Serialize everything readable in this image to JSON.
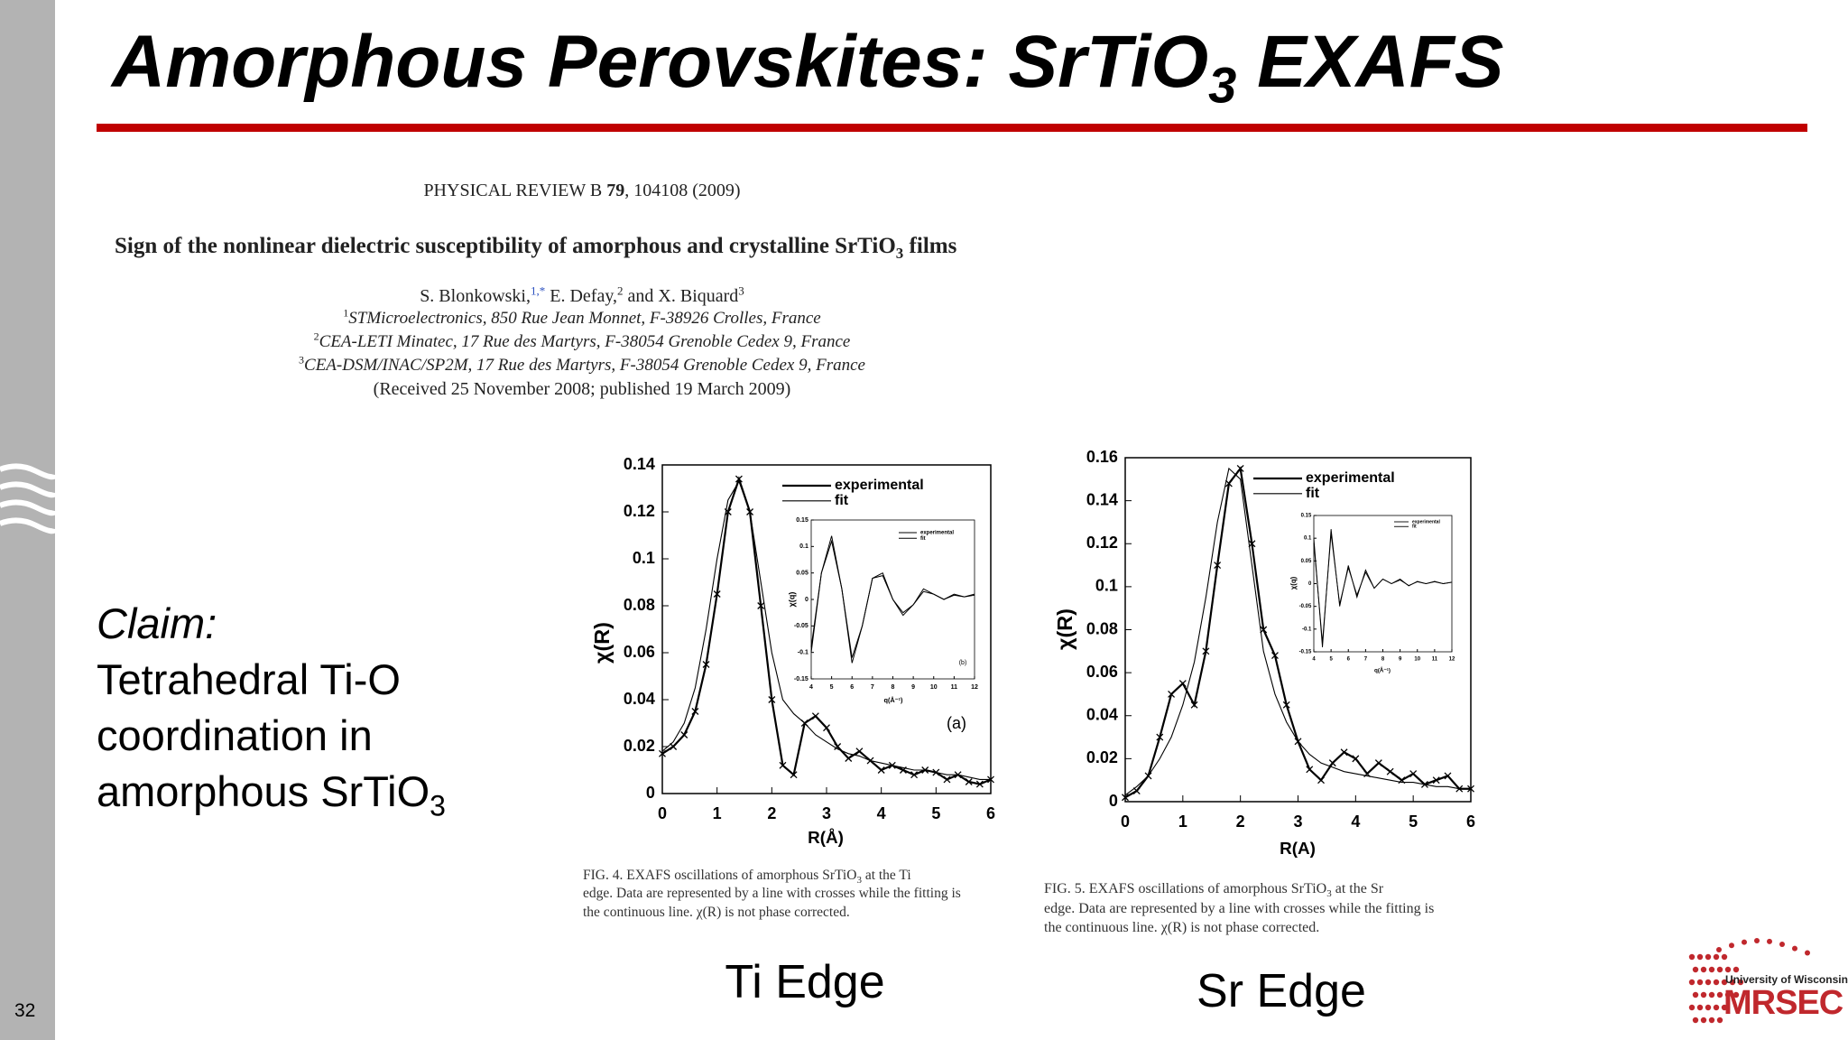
{
  "slide": {
    "title": [
      "Amorphous Perovskites: SrTiO",
      "3",
      " EXAFS"
    ],
    "page_number": "32",
    "claim": [
      "Claim:",
      "Tetrahedral Ti-O",
      "coordination in",
      "amorphous SrTiO",
      "3"
    ],
    "logo": [
      "University of Wisconsin",
      "MRSEC"
    ]
  },
  "paper": {
    "journal": [
      "PHYSICAL REVIEW B ",
      "79",
      ", 104108 (2009)"
    ],
    "title": [
      "Sign of the nonlinear dielectric susceptibility of amorphous and crystalline SrTiO",
      "3",
      " films"
    ],
    "authors": [
      "S. Blonkowski,",
      "1,*",
      " E. Defay,",
      "2",
      " and X. Biquard",
      "3"
    ],
    "affiliations": [
      {
        "mark": "1",
        "text": "STMicroelectronics, 850 Rue Jean Monnet, F-38926 Crolles, France"
      },
      {
        "mark": "2",
        "text": "CEA-LETI Minatec, 17 Rue des Martyrs, F-38054 Grenoble Cedex 9, France"
      },
      {
        "mark": "3",
        "text": "CEA-DSM/INAC/SP2M, 17 Rue des Martyrs, F-38054 Grenoble Cedex 9, France"
      }
    ],
    "received": "(Received 25 November 2008; published 19 March 2009)"
  },
  "figures": [
    {
      "caption": [
        [
          "FIG. 4. EXAFS oscillations of amorphous SrTiO",
          "3",
          " at the Ti"
        ],
        [
          "edge. Data are represented by a line with crosses while the fitting is"
        ],
        [
          "the continuous line. χ(R) is not phase corrected."
        ]
      ],
      "label": "Ti Edge"
    },
    {
      "caption": [
        [
          "FIG. 5. EXAFS oscillations of amorphous SrTiO",
          "3",
          " at the Sr"
        ],
        [
          "edge. Data are represented by a line with crosses while the fitting is"
        ],
        [
          "the continuous line. χ(R) is not phase corrected."
        ]
      ],
      "label": "Sr Edge"
    }
  ],
  "chart_data": [
    {
      "type": "line",
      "xlabel": "R(Å)",
      "ylabel": "χ(R)",
      "annotation": "(a)",
      "x": [
        0,
        0.2,
        0.4,
        0.6,
        0.8,
        1.0,
        1.2,
        1.4,
        1.6,
        1.8,
        2.0,
        2.2,
        2.4,
        2.6,
        2.8,
        3.0,
        3.2,
        3.4,
        3.6,
        3.8,
        4.0,
        4.2,
        4.4,
        4.6,
        4.8,
        5.0,
        5.2,
        5.4,
        5.6,
        5.8,
        6.0
      ],
      "series": [
        {
          "name": "experimental",
          "color": "#000000",
          "marker": "x",
          "values": [
            0.017,
            0.02,
            0.025,
            0.035,
            0.055,
            0.085,
            0.12,
            0.134,
            0.12,
            0.08,
            0.04,
            0.012,
            0.008,
            0.03,
            0.033,
            0.028,
            0.02,
            0.015,
            0.018,
            0.014,
            0.01,
            0.012,
            0.01,
            0.008,
            0.01,
            0.009,
            0.006,
            0.008,
            0.005,
            0.004,
            0.006
          ]
        },
        {
          "name": "fit",
          "color": "#000000",
          "values": [
            0.018,
            0.022,
            0.03,
            0.045,
            0.07,
            0.1,
            0.125,
            0.133,
            0.12,
            0.09,
            0.06,
            0.04,
            0.034,
            0.03,
            0.025,
            0.022,
            0.019,
            0.017,
            0.016,
            0.014,
            0.013,
            0.012,
            0.011,
            0.01,
            0.01,
            0.009,
            0.008,
            0.008,
            0.007,
            0.006,
            0.006
          ]
        }
      ],
      "xlim": [
        0,
        6
      ],
      "xticks": [
        0,
        1,
        2,
        3,
        4,
        5,
        6
      ],
      "ylim": [
        0,
        0.14
      ],
      "yticks": [
        0,
        0.02,
        0.04,
        0.06,
        0.08,
        0.1,
        0.12,
        0.14
      ]
    },
    {
      "type": "line",
      "xlabel": "q(Å⁻¹)",
      "ylabel": "χ(q)",
      "annotation": "(b)",
      "x": [
        4,
        4.5,
        5,
        5.5,
        6,
        6.5,
        7,
        7.5,
        8,
        8.5,
        9,
        9.5,
        10,
        10.5,
        11,
        11.5,
        12
      ],
      "series": [
        {
          "name": "experimental",
          "color": "#000000",
          "values": [
            -0.1,
            0.05,
            0.12,
            0.02,
            -0.12,
            -0.05,
            0.04,
            0.05,
            0,
            -0.03,
            -0.01,
            0.02,
            0.01,
            0,
            0.01,
            0.005,
            0.01
          ]
        },
        {
          "name": "fit",
          "color": "#000000",
          "values": [
            -0.09,
            0.05,
            0.11,
            0.02,
            -0.11,
            -0.05,
            0.04,
            0.045,
            0,
            -0.025,
            -0.01,
            0.015,
            0.01,
            0,
            0.008,
            0.005,
            0.008
          ]
        }
      ],
      "xlim": [
        4,
        12
      ],
      "xticks": [
        4,
        5,
        6,
        7,
        8,
        9,
        10,
        11,
        12
      ],
      "ylim": [
        -0.15,
        0.15
      ],
      "yticks": [
        -0.15,
        -0.1,
        -0.05,
        0,
        0.05,
        0.1,
        0.15
      ]
    },
    {
      "type": "line",
      "xlabel": "R(A)",
      "ylabel": "χ(R)",
      "x": [
        0,
        0.2,
        0.4,
        0.6,
        0.8,
        1.0,
        1.2,
        1.4,
        1.6,
        1.8,
        2.0,
        2.2,
        2.4,
        2.6,
        2.8,
        3.0,
        3.2,
        3.4,
        3.6,
        3.8,
        4.0,
        4.2,
        4.4,
        4.6,
        4.8,
        5.0,
        5.2,
        5.4,
        5.6,
        5.8,
        6.0
      ],
      "series": [
        {
          "name": "experimental",
          "color": "#000000",
          "marker": "x",
          "values": [
            0.002,
            0.005,
            0.012,
            0.03,
            0.05,
            0.055,
            0.045,
            0.07,
            0.11,
            0.148,
            0.155,
            0.12,
            0.08,
            0.068,
            0.045,
            0.028,
            0.015,
            0.01,
            0.018,
            0.023,
            0.02,
            0.013,
            0.018,
            0.014,
            0.01,
            0.013,
            0.008,
            0.01,
            0.012,
            0.006,
            0.006
          ]
        },
        {
          "name": "fit",
          "color": "#000000",
          "values": [
            0.003,
            0.007,
            0.012,
            0.02,
            0.03,
            0.045,
            0.065,
            0.095,
            0.13,
            0.155,
            0.15,
            0.11,
            0.07,
            0.05,
            0.037,
            0.028,
            0.022,
            0.018,
            0.016,
            0.014,
            0.013,
            0.012,
            0.011,
            0.01,
            0.009,
            0.009,
            0.008,
            0.007,
            0.007,
            0.006,
            0.006
          ]
        }
      ],
      "xlim": [
        0,
        6
      ],
      "xticks": [
        0,
        1,
        2,
        3,
        4,
        5,
        6
      ],
      "ylim": [
        0,
        0.16
      ],
      "yticks": [
        0,
        0.02,
        0.04,
        0.06,
        0.08,
        0.1,
        0.12,
        0.14,
        0.16
      ]
    },
    {
      "type": "line",
      "xlabel": "q(Å⁻¹)",
      "ylabel": "χ(q)",
      "x": [
        4,
        4.5,
        5,
        5.5,
        6,
        6.5,
        7,
        7.5,
        8,
        8.5,
        9,
        9.5,
        10,
        10.5,
        11,
        11.5,
        12
      ],
      "series": [
        {
          "name": "experimental",
          "color": "#000000",
          "values": [
            0.1,
            -0.14,
            0.12,
            -0.05,
            0.04,
            -0.03,
            0.03,
            -0.01,
            0.01,
            0,
            0.01,
            -0.005,
            0.005,
            0,
            0.005,
            0,
            0.003
          ]
        },
        {
          "name": "fit",
          "color": "#000000",
          "values": [
            0.09,
            -0.13,
            0.11,
            -0.045,
            0.035,
            -0.025,
            0.025,
            -0.01,
            0.01,
            0,
            0.008,
            -0.004,
            0.004,
            0,
            0.004,
            0,
            0.003
          ]
        }
      ],
      "xlim": [
        4,
        12
      ],
      "xticks": [
        4,
        5,
        6,
        7,
        8,
        9,
        10,
        11,
        12
      ],
      "ylim": [
        -0.15,
        0.15
      ],
      "yticks": [
        -0.15,
        -0.1,
        -0.05,
        0,
        0.05,
        0.1,
        0.15
      ]
    }
  ]
}
